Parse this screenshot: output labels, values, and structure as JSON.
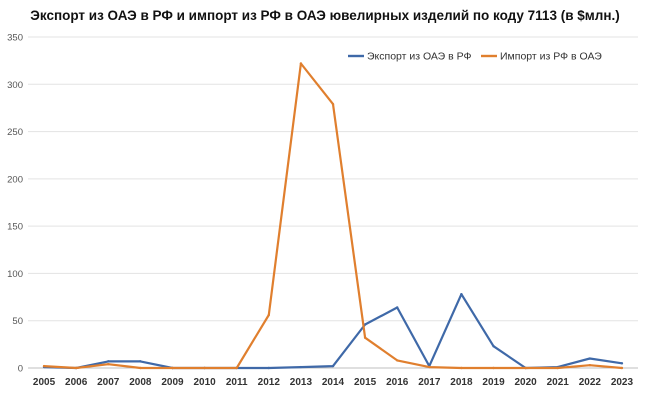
{
  "chart_data": {
    "type": "line",
    "title": "Экспорт из ОАЭ в РФ и импорт из РФ в ОАЭ ювелирных изделий по коду 7113 (в $млн.)",
    "xlabel": "",
    "ylabel": "",
    "x": [
      "2005",
      "2006",
      "2007",
      "2008",
      "2009",
      "2010",
      "2011",
      "2012",
      "2013",
      "2014",
      "2015",
      "2016",
      "2017",
      "2018",
      "2019",
      "2020",
      "2021",
      "2022",
      "2023"
    ],
    "ylim": [
      0,
      350
    ],
    "yticks": [
      0,
      50,
      100,
      150,
      200,
      250,
      300,
      350
    ],
    "grid": "horizontal",
    "legend_position": "top-right",
    "series": [
      {
        "name": "Экспорт из ОАЭ в РФ",
        "color": "#3f69a8",
        "values": [
          1,
          0,
          7,
          7,
          0,
          0,
          0,
          0,
          1,
          2,
          46,
          64,
          2,
          78,
          23,
          0,
          1,
          10,
          5
        ]
      },
      {
        "name": "Импорт из РФ в ОАЭ",
        "color": "#e07f2e",
        "values": [
          2,
          0,
          4,
          0,
          0,
          0,
          0,
          56,
          322,
          279,
          32,
          8,
          1,
          0,
          0,
          0,
          0,
          3,
          0
        ]
      }
    ]
  }
}
